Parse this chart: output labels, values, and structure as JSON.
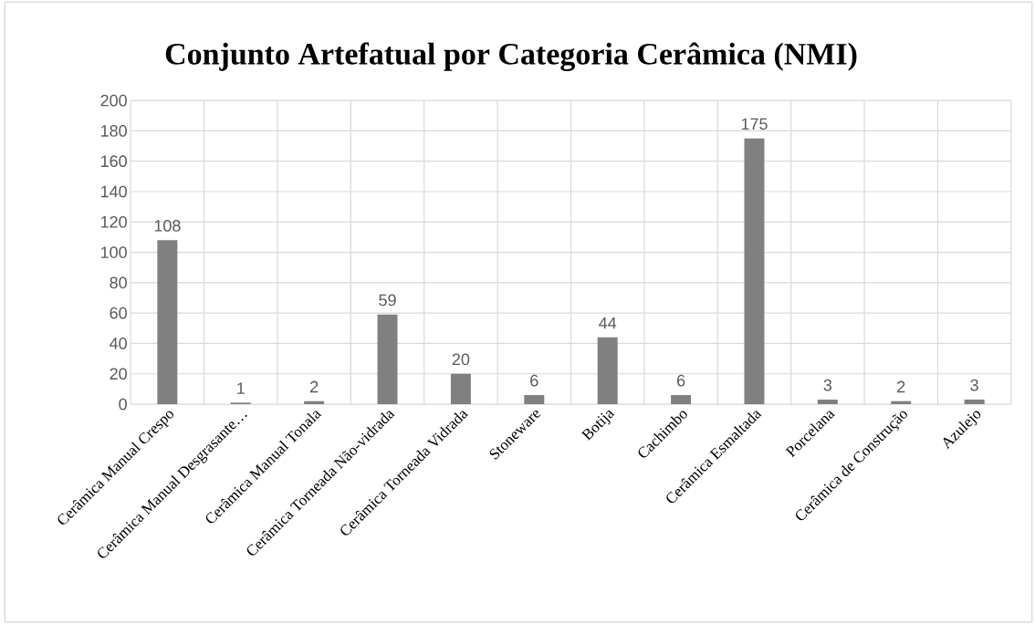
{
  "chart_data": {
    "type": "bar",
    "title": "Conjunto Artefatual por Categoria Cerâmica (NMI)",
    "categories": [
      "Cerâmica Manual Crespo",
      "Cerâmica Manual Desgrasante…",
      "Cerâmica Manual Tonala",
      "Cerâmica Torneada Não-vidrada",
      "Cerâmica Torneada Vidrada",
      "Stoneware",
      "Botija",
      "Cachimbo",
      "Cerâmica Esmaltada",
      "Porcelana",
      "Cerâmica de Construção",
      "Azulejo"
    ],
    "values": [
      108,
      1,
      2,
      59,
      20,
      6,
      44,
      6,
      175,
      3,
      2,
      3
    ],
    "color": "#808080",
    "ylim": [
      0,
      200
    ],
    "yticks": [
      0,
      20,
      40,
      60,
      80,
      100,
      120,
      140,
      160,
      180,
      200
    ],
    "grid": true,
    "data_labels": true
  }
}
